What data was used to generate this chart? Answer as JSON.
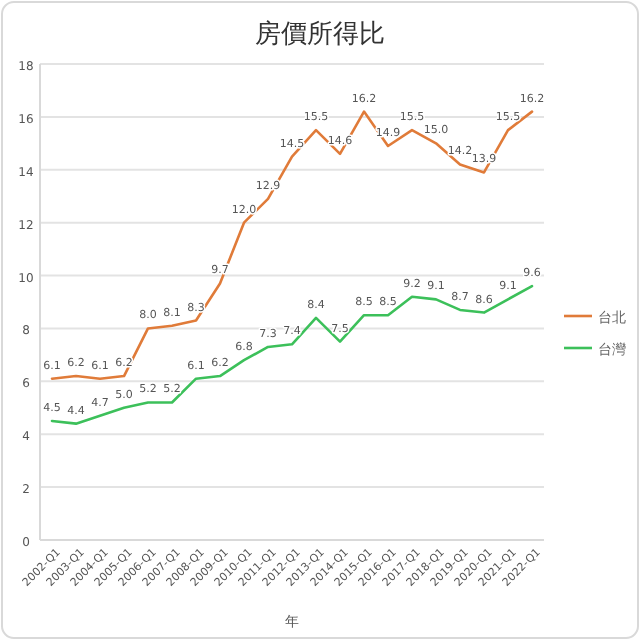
{
  "chart_data": {
    "type": "line",
    "title": "房價所得比",
    "xlabel": "年",
    "categories": [
      "2002-Q1",
      "2003-Q1",
      "2004-Q1",
      "2005-Q1",
      "2006-Q1",
      "2007-Q1",
      "2008-Q1",
      "2009-Q1",
      "2010-Q1",
      "2011-Q1",
      "2012-Q1",
      "2013-Q1",
      "2014-Q1",
      "2015-Q1",
      "2016-Q1",
      "2017-Q1",
      "2018-Q1",
      "2019-Q1",
      "2020-Q1",
      "2021-Q1",
      "2022-Q1"
    ],
    "series": [
      {
        "name": "台北",
        "color": "#e07b39",
        "values": [
          6.1,
          6.2,
          6.1,
          6.2,
          8.0,
          8.1,
          8.3,
          9.7,
          12.0,
          12.9,
          14.5,
          15.5,
          14.6,
          16.2,
          14.9,
          15.5,
          15.0,
          14.2,
          13.9,
          15.5,
          16.2
        ],
        "value_labels": [
          "6.1",
          "6.2",
          "6.1",
          "6.2",
          "8.0",
          "8.1",
          "8.3",
          "9.7",
          "12.0",
          "12.9",
          "14.5",
          "15.5",
          "14.6",
          "16.2",
          "14.9",
          "15.5",
          "15.0",
          "14.2",
          "13.9",
          "15.5",
          "16.2"
        ]
      },
      {
        "name": "台灣",
        "color": "#3cc05a",
        "values": [
          4.5,
          4.4,
          4.7,
          5.0,
          5.2,
          5.2,
          6.1,
          6.2,
          6.8,
          7.3,
          7.4,
          8.4,
          7.5,
          8.5,
          8.5,
          9.2,
          9.1,
          8.7,
          8.6,
          9.1,
          9.6
        ],
        "value_labels": [
          "4.5",
          "4.4",
          "4.7",
          "5.0",
          "5.2",
          "5.2",
          "6.1",
          "6.2",
          "6.8",
          "7.3",
          "7.4",
          "8.4",
          "7.5",
          "8.5",
          "8.5",
          "9.2",
          "9.1",
          "8.7",
          "8.6",
          "9.1",
          "9.6"
        ]
      }
    ],
    "ylim": [
      0,
      18
    ],
    "yticks": [
      0,
      2,
      4,
      6,
      8,
      10,
      12,
      14,
      16,
      18
    ],
    "grid": "y",
    "legend": "right",
    "marker": "none",
    "line_style": "solid"
  }
}
